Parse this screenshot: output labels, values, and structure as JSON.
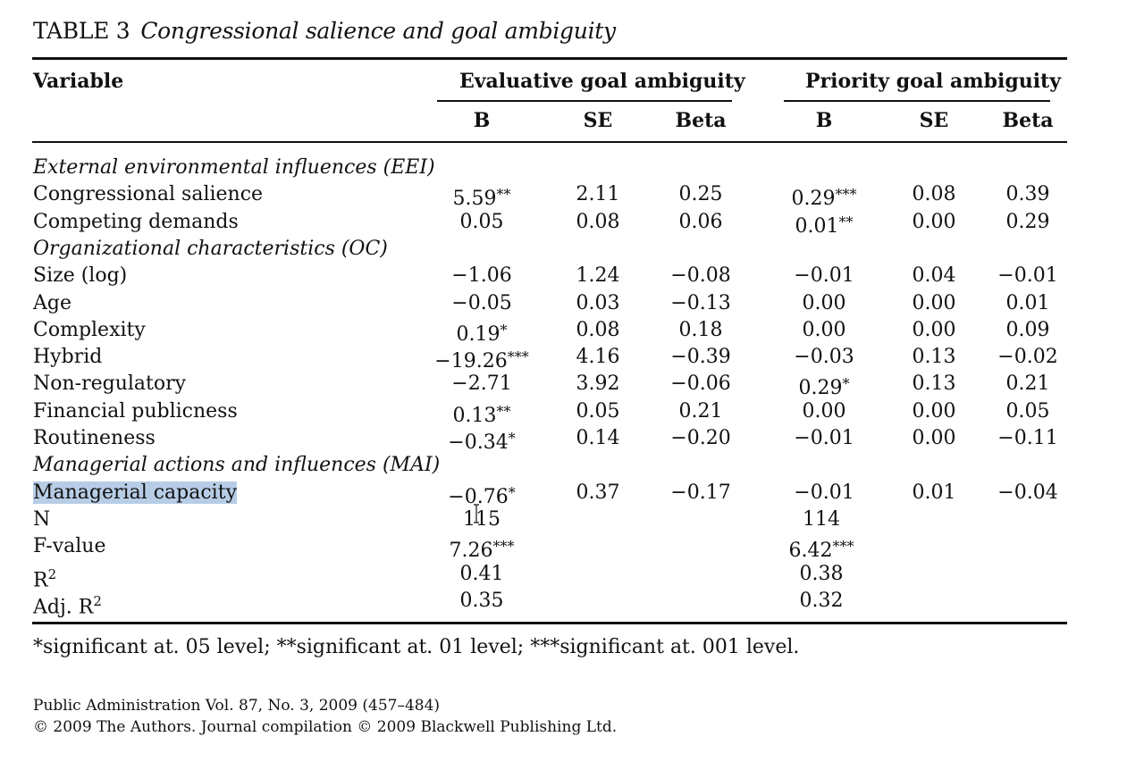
{
  "caption": {
    "label": "TABLE 3",
    "title": "Congressional salience and goal ambiguity"
  },
  "header": {
    "variable": "Variable",
    "group1": "Evaluative goal ambiguity",
    "group2": "Priority goal ambiguity",
    "cols": [
      "B",
      "SE",
      "Beta",
      "B",
      "SE",
      "Beta"
    ]
  },
  "rows": [
    {
      "kind": "section",
      "label": "External environmental influences (EEI)"
    },
    {
      "kind": "data",
      "label": "Congressional salience",
      "b1": "5.59",
      "s1": "**",
      "se1": "2.11",
      "beta1": "0.25",
      "b2": "0.29",
      "s2": "***",
      "se2": "0.08",
      "beta2": "0.39"
    },
    {
      "kind": "data",
      "label": "Competing demands",
      "b1": "0.05",
      "s1": "",
      "se1": "0.08",
      "beta1": "0.06",
      "b2": "0.01",
      "s2": "**",
      "se2": "0.00",
      "beta2": "0.29"
    },
    {
      "kind": "section",
      "label": "Organizational characteristics (OC)"
    },
    {
      "kind": "data",
      "label": "Size (log)",
      "b1": "−1.06",
      "s1": "",
      "se1": "1.24",
      "beta1": "−0.08",
      "b2": "−0.01",
      "s2": "",
      "se2": "0.04",
      "beta2": "−0.01"
    },
    {
      "kind": "data",
      "label": "Age",
      "b1": "−0.05",
      "s1": "",
      "se1": "0.03",
      "beta1": "−0.13",
      "b2": "0.00",
      "s2": "",
      "se2": "0.00",
      "beta2": "0.01"
    },
    {
      "kind": "data",
      "label": "Complexity",
      "b1": "0.19",
      "s1": "*",
      "se1": "0.08",
      "beta1": "0.18",
      "b2": "0.00",
      "s2": "",
      "se2": "0.00",
      "beta2": "0.09"
    },
    {
      "kind": "data",
      "label": "Hybrid",
      "b1": "−19.26",
      "s1": "***",
      "se1": "4.16",
      "beta1": "−0.39",
      "b2": "−0.03",
      "s2": "",
      "se2": "0.13",
      "beta2": "−0.02"
    },
    {
      "kind": "data",
      "label": "Non-regulatory",
      "b1": "−2.71",
      "s1": "",
      "se1": "3.92",
      "beta1": "−0.06",
      "b2": "0.29",
      "s2": "*",
      "se2": "0.13",
      "beta2": "0.21"
    },
    {
      "kind": "data",
      "label": "Financial publicness",
      "b1": "0.13",
      "s1": "**",
      "se1": "0.05",
      "beta1": "0.21",
      "b2": "0.00",
      "s2": "",
      "se2": "0.00",
      "beta2": "0.05"
    },
    {
      "kind": "data",
      "label": "Routineness",
      "b1": "−0.34",
      "s1": "*",
      "se1": "0.14",
      "beta1": "−0.20",
      "b2": "−0.01",
      "s2": "",
      "se2": "0.00",
      "beta2": "−0.11"
    },
    {
      "kind": "section",
      "label": "Managerial actions and influences (MAI)"
    },
    {
      "kind": "data",
      "label": "Managerial capacity",
      "highlight": true,
      "b1": "−0.76",
      "s1": "*",
      "se1": "0.37",
      "beta1": "−0.17",
      "b2": "−0.01",
      "s2": "",
      "se2": "0.01",
      "beta2": "−0.04"
    },
    {
      "kind": "stat",
      "label": "N",
      "v1": "115",
      "s1": "",
      "v2": "114",
      "s2": ""
    },
    {
      "kind": "stat",
      "label": "F-value",
      "v1": "7.26",
      "s1": "***",
      "v2": "6.42",
      "s2": "***"
    },
    {
      "kind": "stat",
      "label": "R",
      "sup": "2",
      "v1": "0.41",
      "s1": "",
      "v2": "0.38",
      "s2": ""
    },
    {
      "kind": "stat",
      "label": "Adj. R",
      "sup": "2",
      "v1": "0.35",
      "s1": "",
      "v2": "0.32",
      "s2": ""
    }
  ],
  "note": "*significant at. 05 level; **significant at. 01 level; ***significant at. 001 level.",
  "footer": {
    "line1": "Public Administration Vol. 87, No. 3, 2009 (457–484)",
    "line2": "© 2009 The Authors. Journal compilation © 2009 Blackwell Publishing Ltd."
  },
  "cursor_icon": "text-cursor-icon"
}
